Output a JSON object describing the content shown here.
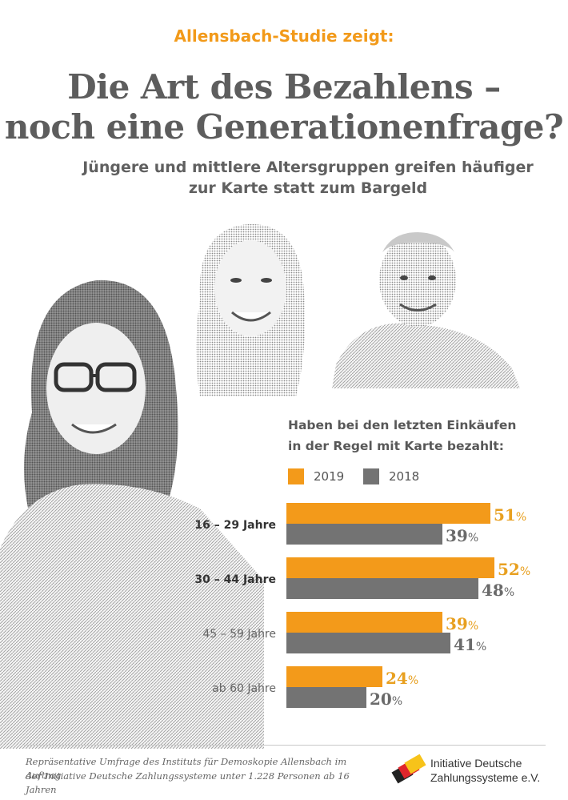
{
  "header": {
    "kicker": "Allensbach-Studie zeigt:",
    "title_line1": "Die Art des Bezahlens –",
    "title_line2": "noch eine Generationenfrage?",
    "subtitle_line1": "Jüngere und mittlere Altersgruppen greifen häufiger",
    "subtitle_line2": "zur Karte statt zum Bargeld"
  },
  "colors": {
    "orange": "#f39a1a",
    "gray": "#737373",
    "title": "#5d5d5d",
    "label_orange": "#e8a020"
  },
  "chart_data": {
    "type": "bar",
    "orientation": "horizontal",
    "title_line1": "Haben bei den letzten Einkäufen",
    "title_line2": "in der Regel mit Karte bezahlt:",
    "categories": [
      "16 – 29 Jahre",
      "30 – 44 Jahre",
      "45 – 59 Jahre",
      "ab 60 Jahre"
    ],
    "category_bold": [
      true,
      true,
      false,
      false
    ],
    "series": [
      {
        "name": "2019",
        "values": [
          51,
          52,
          39,
          24
        ]
      },
      {
        "name": "2018",
        "values": [
          39,
          48,
          41,
          20
        ]
      }
    ],
    "unit": "%",
    "xlim": [
      0,
      55
    ],
    "legend": "top"
  },
  "footer": {
    "source_line1": "Repräsentative Umfrage des Instituts für Demoskopie Allensbach im Auftrag",
    "source_line2": "der Initiative Deutsche Zahlungssysteme unter 1.228 Personen ab 16 Jahren",
    "logo_line1": "Initiative Deutsche",
    "logo_line2": "Zahlungssysteme e.V."
  }
}
